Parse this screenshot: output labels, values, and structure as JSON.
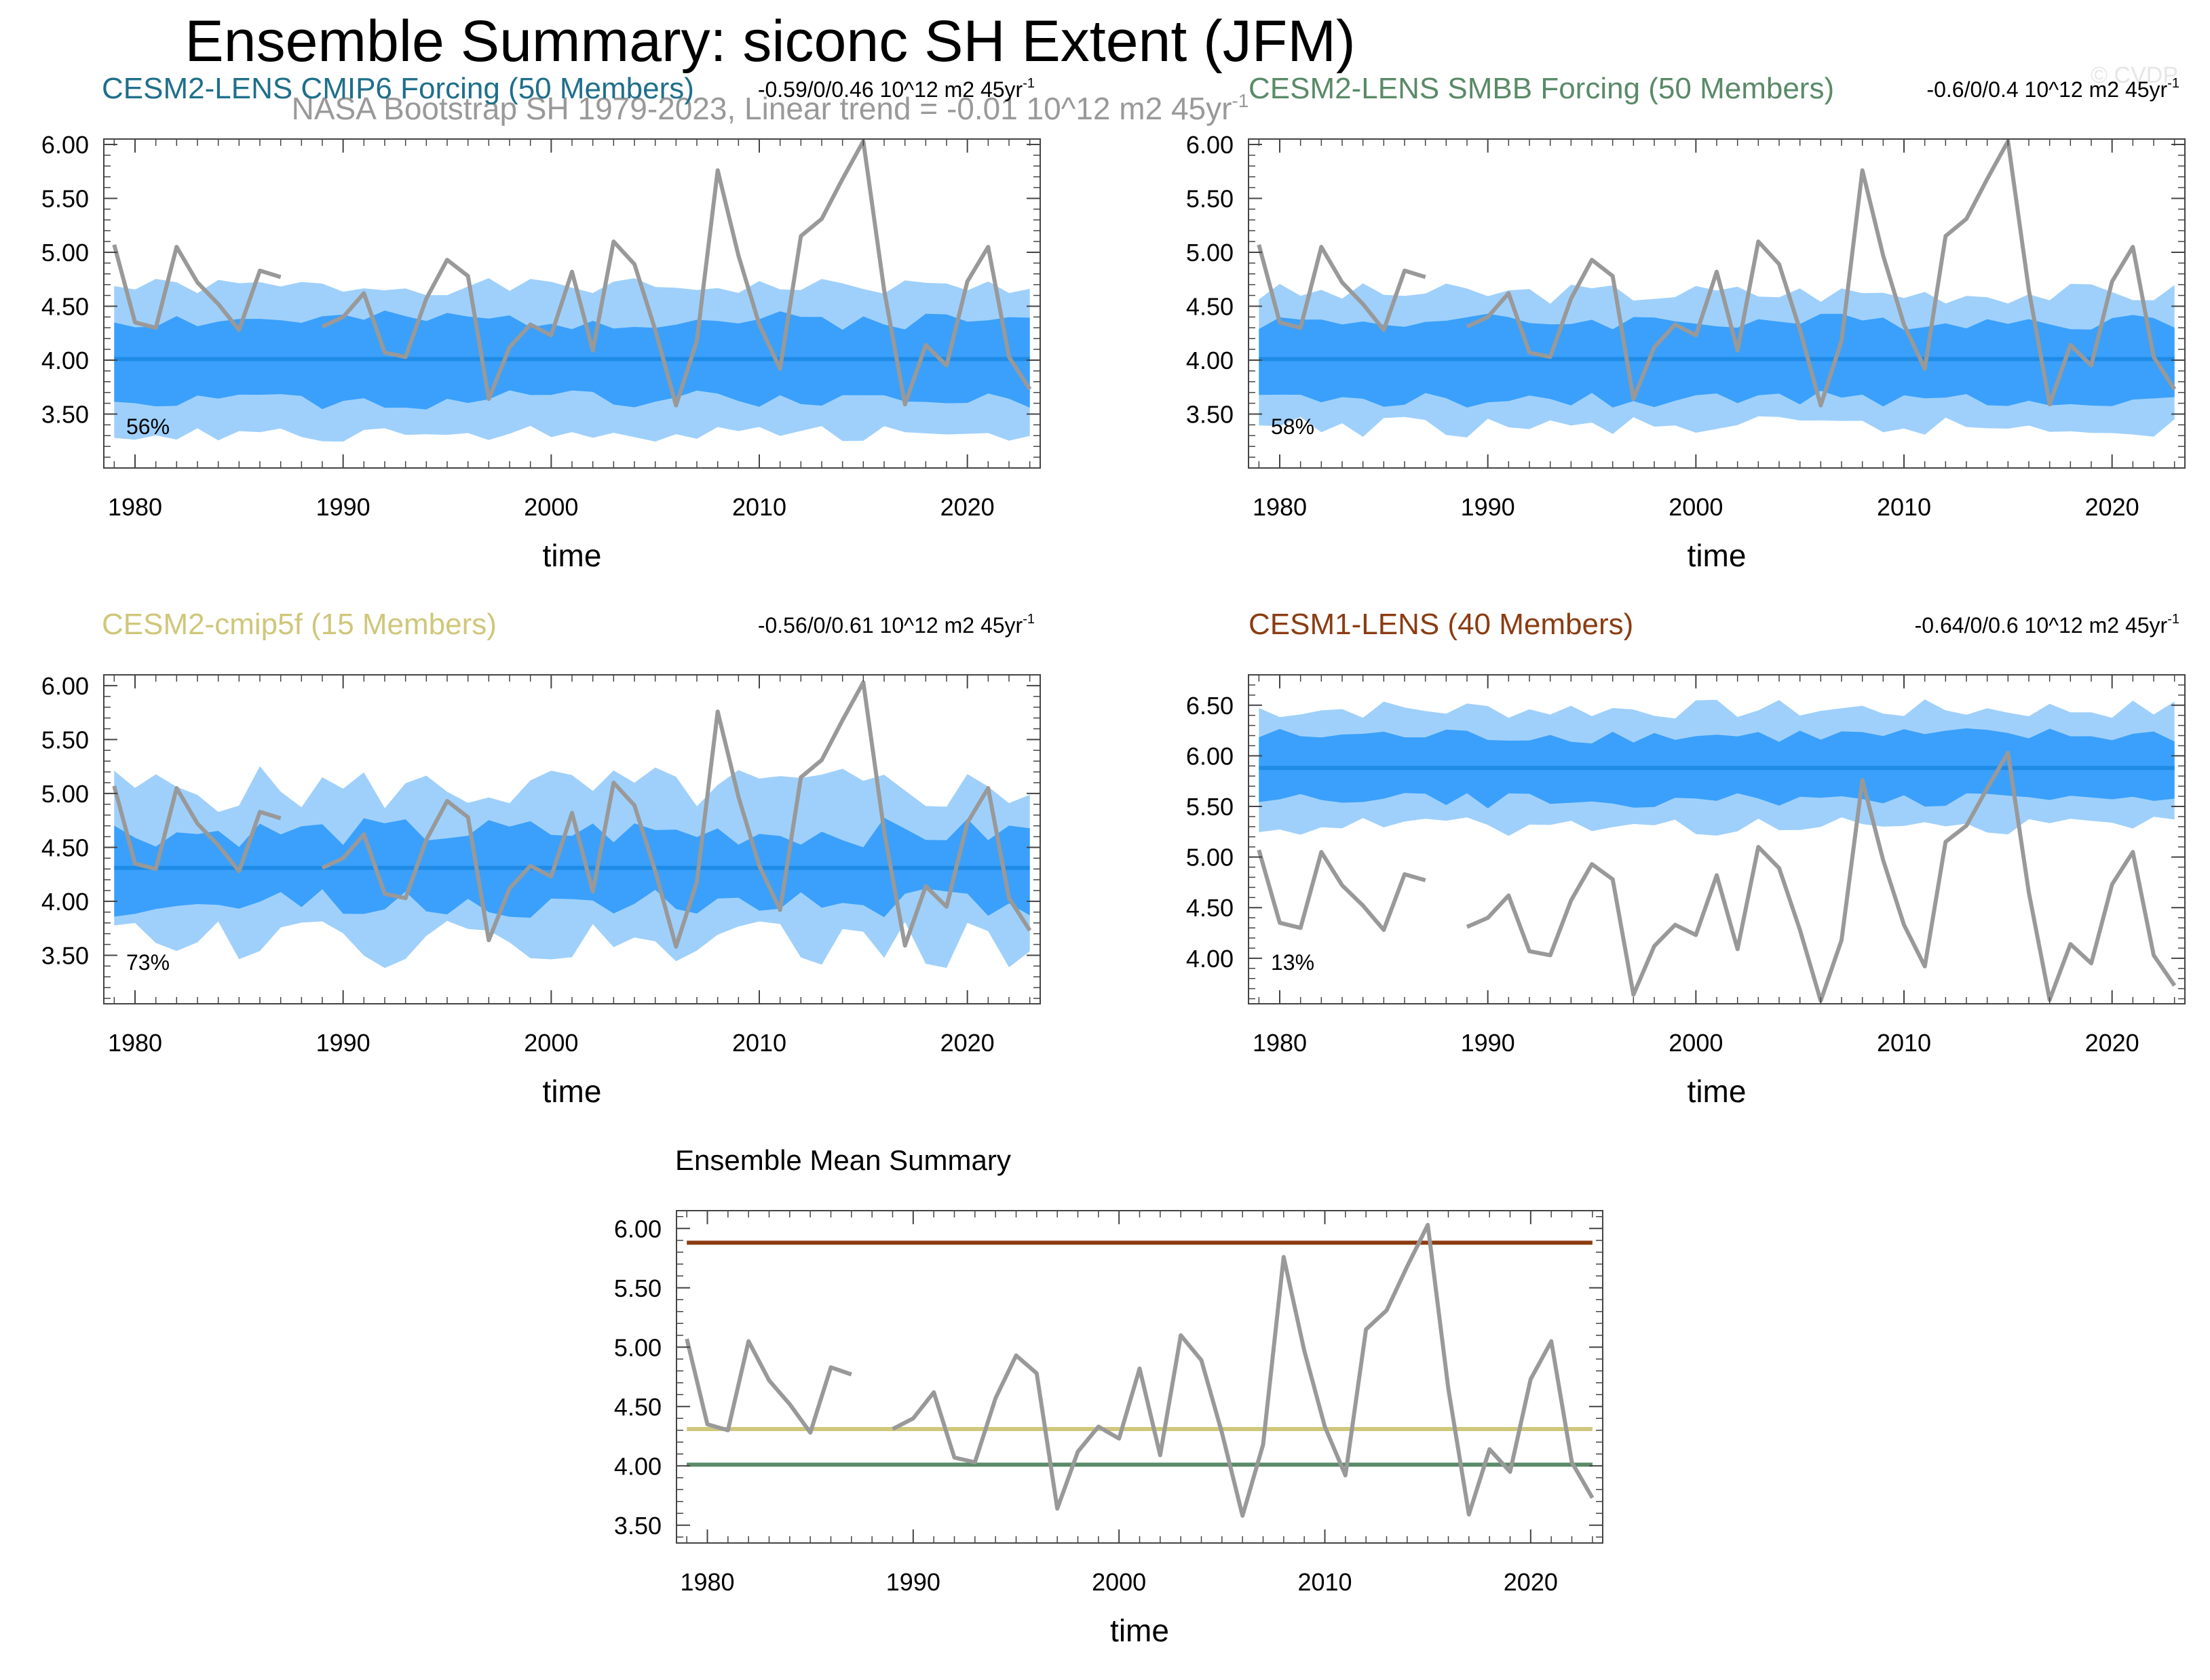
{
  "figure": {
    "title": "Ensemble Summary: siconc SH Extent (JFM)",
    "subtitle": "NASA Bootstrap SH 1979-2023, Linear trend = -0.01 10^12 m2 45yr",
    "subtitle_sup": "-1",
    "watermark": "© CVDP"
  },
  "colors": {
    "spread_outer": "#9fd0fb",
    "spread_inner": "#3aa0fb",
    "ens_mean": "#1e8be6",
    "observations": "#999999",
    "CESM2-LENS CMIP6": "#1f6f8b",
    "CESM2-LENS SMBB": "#5a8a68",
    "CESM2-cmip5f": "#cfc77a",
    "CESM1-LENS": "#8b3c12"
  },
  "chart_data": [
    {
      "type": "area",
      "title": "CESM2-LENS CMIP6 Forcing (50 Members)",
      "title_color": "#1f6f8b",
      "trend_text": "-0.59/0/0.46 10^12 m2 45yr",
      "trend_sup": "-1",
      "percent_label": "56%",
      "xlabel": "time",
      "xlim": [
        1978.5,
        2023.5
      ],
      "xticks": [
        1980,
        1990,
        2000,
        2010,
        2020
      ],
      "ylim": [
        3.0,
        6.05
      ],
      "yticks": [
        "6.00",
        "5.50",
        "5.00",
        "4.50",
        "4.00",
        "3.50"
      ],
      "ensemble_mean": 4.01,
      "outer_band": {
        "center": 4.0,
        "amp": 0.68,
        "noise": 0.08,
        "seed": 1
      },
      "inner_band": {
        "center": 4.0,
        "amp": 0.37,
        "noise": 0.09,
        "seed": 2
      }
    },
    {
      "type": "area",
      "title": "CESM2-LENS SMBB Forcing (50 Members)",
      "title_color": "#5a8a68",
      "trend_text": "-0.6/0/0.4 10^12 m2 45yr",
      "trend_sup": "-1",
      "percent_label": "58%",
      "xlabel": "time",
      "xlim": [
        1978.5,
        2023.5
      ],
      "xticks": [
        1980,
        1990,
        2000,
        2010,
        2020
      ],
      "ylim": [
        3.0,
        6.05
      ],
      "yticks": [
        "6.00",
        "5.50",
        "5.00",
        "4.50",
        "4.00",
        "3.50"
      ],
      "ensemble_mean": 4.01,
      "outer_band": {
        "center": 4.0,
        "amp": 0.62,
        "noise": 0.1,
        "seed": 3
      },
      "inner_band": {
        "center": 4.0,
        "amp": 0.36,
        "noise": 0.08,
        "seed": 4
      }
    },
    {
      "type": "area",
      "title": "CESM2-cmip5f (15 Members)",
      "title_color": "#cfc77a",
      "trend_text": "-0.56/0/0.61 10^12 m2 45yr",
      "trend_sup": "-1",
      "percent_label": "73%",
      "xlabel": "time",
      "xlim": [
        1978.5,
        2023.5
      ],
      "xticks": [
        1980,
        1990,
        2000,
        2010,
        2020
      ],
      "ylim": [
        3.05,
        6.1
      ],
      "yticks": [
        "6.00",
        "5.50",
        "5.00",
        "4.50",
        "4.00",
        "3.50"
      ],
      "ensemble_mean": 4.31,
      "outer_band": {
        "center": 4.32,
        "amp": 0.72,
        "noise": 0.22,
        "seed": 5
      },
      "inner_band": {
        "center": 4.31,
        "amp": 0.33,
        "noise": 0.14,
        "seed": 6
      }
    },
    {
      "type": "area",
      "title": "CESM1-LENS (40 Members)",
      "title_color": "#8b3c12",
      "trend_text": "-0.64/0/0.6 10^12 m2 45yr",
      "trend_sup": "-1",
      "percent_label": "13%",
      "xlabel": "time",
      "xlim": [
        1978.5,
        2023.5
      ],
      "xticks": [
        1980,
        1990,
        2000,
        2010,
        2020
      ],
      "ylim": [
        3.55,
        6.8
      ],
      "yticks": [
        "6.50",
        "6.00",
        "5.50",
        "5.00",
        "4.50",
        "4.00"
      ],
      "ensemble_mean": 5.88,
      "outer_band": {
        "center": 5.88,
        "amp": 0.58,
        "noise": 0.1,
        "seed": 7
      },
      "inner_band": {
        "center": 5.88,
        "amp": 0.32,
        "noise": 0.08,
        "seed": 8
      }
    },
    {
      "type": "line",
      "title": "Ensemble Mean Summary",
      "title_color": "#000000",
      "xlabel": "time",
      "xlim": [
        1978.5,
        2023.5
      ],
      "xticks": [
        1980,
        1990,
        2000,
        2010,
        2020
      ],
      "ylim": [
        3.35,
        6.15
      ],
      "yticks": [
        "6.00",
        "5.50",
        "5.00",
        "4.50",
        "4.00",
        "3.50"
      ],
      "series": [
        {
          "value": 5.88,
          "color": "#8b3c12"
        },
        {
          "value": 4.31,
          "color": "#cfc77a"
        },
        {
          "value": 4.01,
          "color": "#1f6f8b"
        },
        {
          "value": 4.01,
          "color": "#5a8a68"
        }
      ]
    }
  ],
  "observations": {
    "years": [
      1979,
      1980,
      1981,
      1982,
      1983,
      1984,
      1985,
      1986,
      1987,
      1988,
      1989,
      1990,
      1991,
      1992,
      1993,
      1994,
      1995,
      1996,
      1997,
      1998,
      1999,
      2000,
      2001,
      2002,
      2003,
      2004,
      2005,
      2006,
      2007,
      2008,
      2009,
      2010,
      2011,
      2012,
      2013,
      2014,
      2015,
      2016,
      2017,
      2018,
      2019,
      2020,
      2021,
      2022,
      2023
    ],
    "values": [
      5.07,
      4.35,
      4.3,
      5.05,
      4.72,
      4.52,
      4.28,
      4.83,
      4.77,
      null,
      4.31,
      4.4,
      4.62,
      4.07,
      4.03,
      4.57,
      4.93,
      4.78,
      3.64,
      4.12,
      4.33,
      4.23,
      4.82,
      4.09,
      5.1,
      4.89,
      4.28,
      3.58,
      4.18,
      5.76,
      4.97,
      4.33,
      3.92,
      5.15,
      5.31,
      5.68,
      6.03,
      4.65,
      3.59,
      4.14,
      3.95,
      4.73,
      5.05,
      4.03,
      3.73
    ]
  }
}
